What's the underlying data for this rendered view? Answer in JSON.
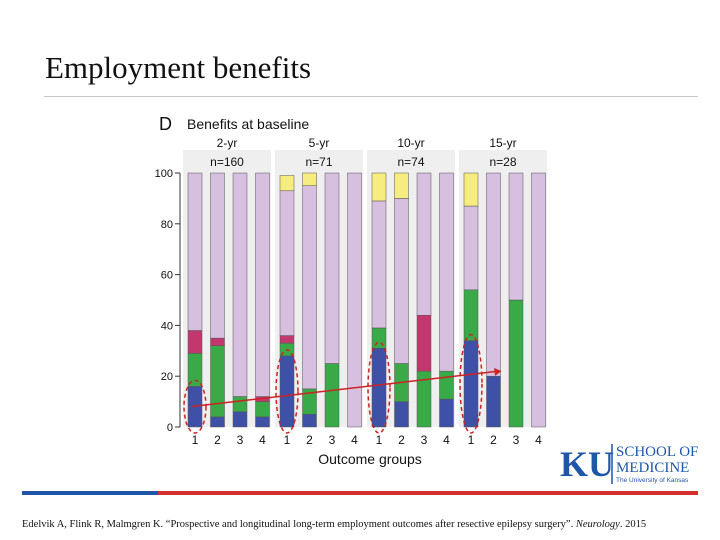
{
  "slide": {
    "title": "Employment benefits",
    "citation_prefix": "Edelvik A, Flink R, Malmgren K. “Prospective and longitudinal long-term employment outcomes after resective epilepsy surgery”. ",
    "citation_journal": "Neurology",
    "citation_suffix": ". 2015"
  },
  "logo": {
    "abbr": "KU",
    "line1": "SCHOOL OF",
    "line2": "MEDICINE",
    "line3": "The University of Kansas",
    "color": "#1f57a8"
  },
  "chart_data": {
    "type": "bar",
    "stacked": true,
    "panel_letter": "D",
    "title": "Benefits at baseline",
    "xlabel": "Outcome groups",
    "ylabel": "",
    "ylim": [
      0,
      100
    ],
    "yticks": [
      0,
      20,
      40,
      60,
      80,
      100
    ],
    "categories": [
      "1",
      "2",
      "3",
      "4"
    ],
    "panels": [
      {
        "label": "2-yr",
        "n": "n=160"
      },
      {
        "label": "5-yr",
        "n": "n=71"
      },
      {
        "label": "10-yr",
        "n": "n=74"
      },
      {
        "label": "15-yr",
        "n": "n=28"
      }
    ],
    "colors": [
      "#3f51a6",
      "#3aaa48",
      "#c2376e",
      "#d7bfe0",
      "#f7ec7f"
    ],
    "bars": [
      [
        [
          16,
          13,
          9,
          62,
          0
        ],
        [
          4,
          28,
          3,
          65,
          0
        ],
        [
          6,
          6,
          0,
          88,
          0
        ],
        [
          4,
          6,
          2,
          88,
          0
        ]
      ],
      [
        [
          28,
          5,
          3,
          57,
          6
        ],
        [
          5,
          10,
          0,
          80,
          5
        ],
        [
          0,
          25,
          0,
          75,
          0
        ],
        [
          0,
          0,
          0,
          100,
          0
        ]
      ],
      [
        [
          31,
          8,
          0,
          50,
          11
        ],
        [
          10,
          15,
          0,
          65,
          10
        ],
        [
          0,
          22,
          22,
          56,
          0
        ],
        [
          11,
          11,
          0,
          78,
          0
        ]
      ],
      [
        [
          34,
          20,
          0,
          33,
          13
        ],
        [
          20,
          0,
          0,
          80,
          0
        ],
        [
          0,
          50,
          0,
          50,
          0
        ],
        [
          0,
          0,
          0,
          100,
          0
        ]
      ]
    ],
    "trend_arrow": {
      "from_value": 8,
      "to_value": 22
    }
  }
}
